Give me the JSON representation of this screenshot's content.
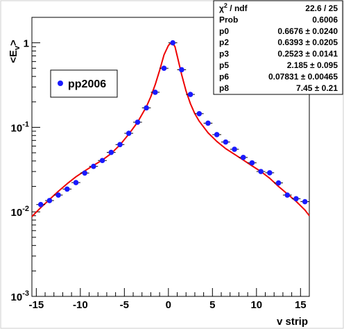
{
  "stats": {
    "rows": [
      {
        "label": "χ² / ndf",
        "value": "22.6 / 25"
      },
      {
        "label": "Prob",
        "value": "0.6006"
      },
      {
        "label": "p0",
        "value": "0.6676 ± 0.0240"
      },
      {
        "label": "p2",
        "value": "0.6393 ± 0.0205"
      },
      {
        "label": "p3",
        "value": "0.2523 ± 0.0141"
      },
      {
        "label": "p5",
        "value": "2.185 ± 0.095"
      },
      {
        "label": "p6",
        "value": "0.07831 ± 0.00465"
      },
      {
        "label": "p8",
        "value": "7.45 ± 0.21"
      }
    ]
  },
  "colors": {
    "points": "#1a1aff",
    "fit": "#ee0000",
    "frame": "#000000"
  },
  "chart_data": {
    "type": "scatter",
    "xlabel": "v strip",
    "ylabel": "<E_v>",
    "xlim": [
      -15.5,
      16
    ],
    "ylim": [
      0.001,
      2
    ],
    "yscale": "log",
    "xticks": [
      -15,
      -10,
      -5,
      0,
      5,
      10,
      15
    ],
    "xtick_labels": [
      "-15",
      "-10",
      "-5",
      "0",
      "5",
      "10",
      "15"
    ],
    "yticks": [
      0.001,
      0.01,
      0.1,
      1
    ],
    "ytick_labels": [
      {
        "base": "10",
        "exp": "-3"
      },
      {
        "base": "10",
        "exp": "-2"
      },
      {
        "base": "10",
        "exp": "-1"
      },
      {
        "base": "1",
        "exp": ""
      }
    ],
    "legend": {
      "label": "pp2006",
      "placement": "upper-left"
    },
    "series": [
      {
        "name": "pp2006",
        "x": [
          -14.5,
          -13.5,
          -12.5,
          -11.5,
          -10.5,
          -9.5,
          -8.5,
          -7.5,
          -6.5,
          -5.5,
          -4.5,
          -3.5,
          -2.5,
          -1.5,
          -0.5,
          0.5,
          1.5,
          2.5,
          3.5,
          4.5,
          5.5,
          6.5,
          7.5,
          8.5,
          9.5,
          10.5,
          11.5,
          12.5,
          13.5,
          14.5,
          15.5
        ],
        "y": [
          0.0122,
          0.0136,
          0.0158,
          0.0186,
          0.0222,
          0.0288,
          0.0345,
          0.0405,
          0.0505,
          0.0625,
          0.085,
          0.115,
          0.17,
          0.26,
          0.5,
          1.0,
          0.48,
          0.245,
          0.145,
          0.112,
          0.082,
          0.067,
          0.055,
          0.044,
          0.038,
          0.03,
          0.029,
          0.022,
          0.0158,
          0.0143,
          0.0132
        ]
      }
    ],
    "fit": {
      "name": "fit",
      "x": [
        -15.5,
        -14.5,
        -13.5,
        -12.5,
        -11.5,
        -10.5,
        -9.5,
        -8.5,
        -7.5,
        -6.5,
        -5.5,
        -4.5,
        -3.5,
        -2.5,
        -2,
        -1.5,
        -1,
        -0.5,
        0,
        0.25,
        0.5,
        0.75,
        1,
        1.5,
        2,
        2.5,
        3,
        3.5,
        4.5,
        5.5,
        6.5,
        7.5,
        8.5,
        9.5,
        10.5,
        11.5,
        12.5,
        13.5,
        14.5,
        15.5,
        16
      ],
      "y": [
        0.0088,
        0.0112,
        0.014,
        0.0175,
        0.0215,
        0.026,
        0.0305,
        0.0355,
        0.041,
        0.049,
        0.062,
        0.083,
        0.115,
        0.175,
        0.23,
        0.32,
        0.47,
        0.72,
        0.93,
        0.99,
        0.985,
        0.9,
        0.7,
        0.42,
        0.27,
        0.19,
        0.145,
        0.118,
        0.086,
        0.068,
        0.056,
        0.048,
        0.041,
        0.035,
        0.03,
        0.025,
        0.02,
        0.0163,
        0.0133,
        0.0105,
        0.009
      ]
    }
  }
}
